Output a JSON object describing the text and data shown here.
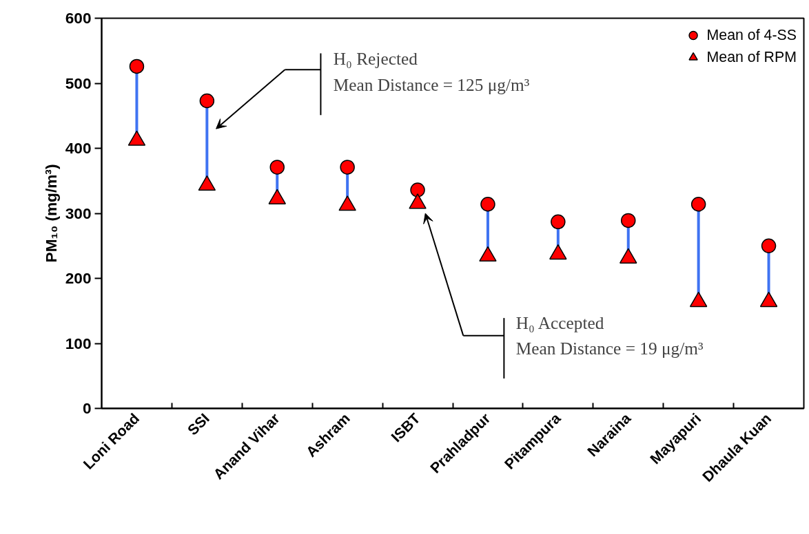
{
  "chart_data": {
    "type": "scatter",
    "ylabel": "PM₁₀ (mg/m³)",
    "categories": [
      "Loni Road",
      "SSI",
      "Anand Vihar",
      "Ashram",
      "ISBT",
      "Prahladpur",
      "Pitampura",
      "Naraina",
      "Mayapuri",
      "Dhaula Kuan"
    ],
    "series": [
      {
        "name": "Mean of 4-SS",
        "color": "#ff0000",
        "marker": "circle",
        "values": [
          526,
          473,
          371,
          371,
          336,
          314,
          287,
          289,
          314,
          250
        ]
      },
      {
        "name": "Mean of RPM",
        "color": "#ff0000",
        "marker": "triangle",
        "values": [
          412,
          343,
          322,
          312,
          315,
          234,
          237,
          231,
          164,
          164
        ]
      }
    ],
    "ylim": [
      0,
      600
    ],
    "yticks": [
      0,
      100,
      200,
      300,
      400,
      500,
      600
    ],
    "grid": false,
    "legend": "top right",
    "annotations": [
      "H₀ Rejected\nMean Distance = 125 μg/m³",
      "H₀ Accepted\nMean Distance = 19 μg/m³"
    ]
  }
}
